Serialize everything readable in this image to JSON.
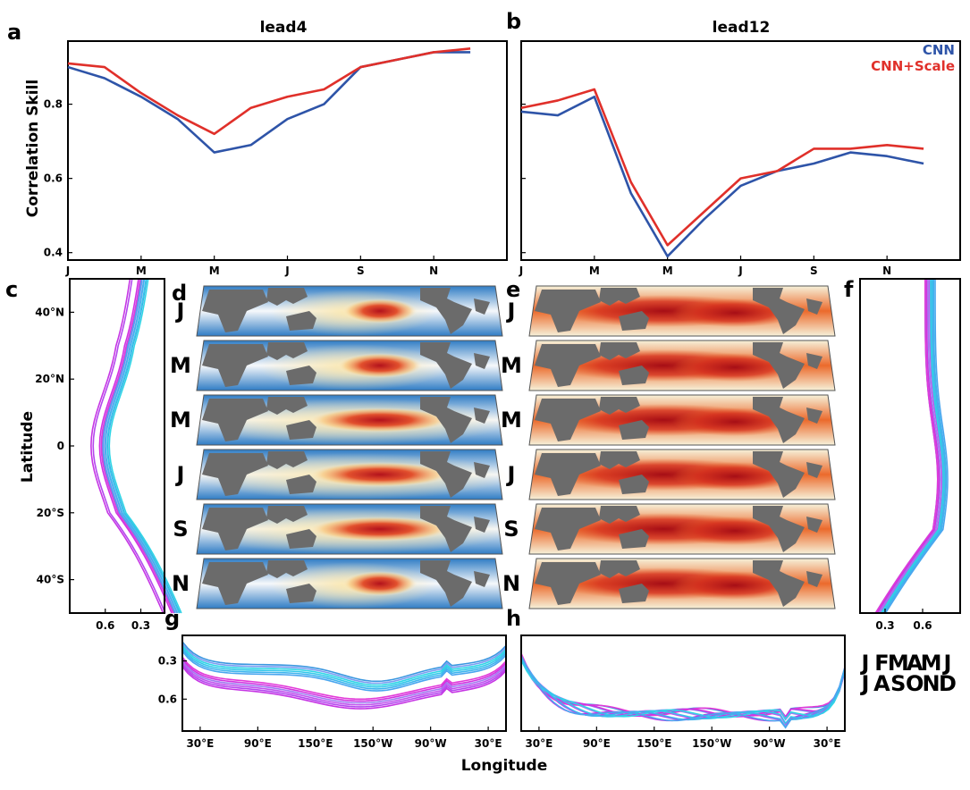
{
  "colors": {
    "cnn": "#2e54a8",
    "cnn_scale": "#e0302a",
    "month_J": "#3a97e0",
    "month_F": "#7b9cf2",
    "month_M": "#a07af0",
    "month_A": "#c152ef",
    "month_Jul": "#c636e4",
    "month_Aug": "#e23ad8",
    "month_S": "#2fd6e6",
    "month_O": "#33c8ea",
    "month_N": "#3fb4ee",
    "month_D": "#4aa6ef",
    "land": "#6b6b6b"
  },
  "panel_labels": {
    "a": "a",
    "b": "b",
    "c": "c",
    "d": "d",
    "e": "e",
    "f": "f",
    "g": "g",
    "h": "h"
  },
  "axis_text": {
    "correlation_skill": "Correlation Skill",
    "latitude": "Latitude",
    "longitude": "Longitude"
  },
  "map_month_labels": [
    "J",
    "M",
    "M",
    "J",
    "S",
    "N"
  ],
  "chart_data": [
    {
      "panel": "a",
      "type": "line",
      "title": "lead4",
      "ylabel": "Correlation Skill",
      "ylim": [
        0.38,
        0.97
      ],
      "yticks": [
        0.4,
        0.6,
        0.8
      ],
      "xtick_labels": [
        "J",
        "M",
        "M",
        "J",
        "S",
        "N"
      ],
      "x": [
        1,
        2,
        3,
        4,
        5,
        6,
        7,
        8,
        9,
        10,
        11,
        12
      ],
      "series": [
        {
          "name": "CNN",
          "color": "#2e54a8",
          "values": [
            0.9,
            0.87,
            0.82,
            0.76,
            0.67,
            0.69,
            0.76,
            0.8,
            0.9,
            0.92,
            0.94,
            0.94
          ]
        },
        {
          "name": "CNN+Scale",
          "color": "#e0302a",
          "values": [
            0.91,
            0.9,
            0.83,
            0.77,
            0.72,
            0.79,
            0.82,
            0.84,
            0.9,
            0.92,
            0.94,
            0.95
          ]
        }
      ]
    },
    {
      "panel": "b",
      "type": "line",
      "title": "lead12",
      "ylim": [
        0.38,
        0.97
      ],
      "xtick_labels": [
        "J",
        "M",
        "M",
        "J",
        "S",
        "N"
      ],
      "legend_position": "top-right",
      "x": [
        1,
        2,
        3,
        4,
        5,
        6,
        7,
        8,
        9,
        10,
        11,
        12
      ],
      "series": [
        {
          "name": "CNN",
          "color": "#2e54a8",
          "values": [
            0.78,
            0.77,
            0.82,
            0.56,
            0.39,
            0.49,
            0.58,
            0.62,
            0.64,
            0.67,
            0.66,
            0.64
          ]
        },
        {
          "name": "CNN+Scale",
          "color": "#e0302a",
          "values": [
            0.79,
            0.81,
            0.84,
            0.59,
            0.42,
            0.51,
            0.6,
            0.62,
            0.68,
            0.68,
            0.69,
            0.68
          ]
        }
      ]
    },
    {
      "panel": "c",
      "type": "line",
      "ylabel": "Latitude",
      "ytick_labels": [
        "40°N",
        "20°N",
        "0",
        "20°S",
        "40°S"
      ],
      "yticks": [
        40,
        20,
        0,
        -20,
        -40
      ],
      "ylim": [
        -50,
        50
      ],
      "xlim": [
        0.9,
        0.1
      ],
      "xticks": [
        0.6,
        0.3
      ],
      "xtick_labels": [
        "0.6",
        "0.3"
      ]
    },
    {
      "panel": "f",
      "type": "line",
      "ylim": [
        -50,
        50
      ],
      "xlim": [
        0.1,
        0.9
      ],
      "xticks": [
        0.3,
        0.6
      ],
      "xtick_labels": [
        "0.3",
        "0.6"
      ]
    },
    {
      "panel": "g",
      "type": "line",
      "ylim": [
        0.85,
        0.1
      ],
      "yticks": [
        0.3,
        0.6
      ],
      "ytick_labels": [
        "0.3",
        "0.6"
      ],
      "xtick_labels": [
        "30°E",
        "90°E",
        "150°E",
        "150°W",
        "90°W",
        "30°E"
      ]
    },
    {
      "panel": "h",
      "type": "line",
      "ylim": [
        0.85,
        0.1
      ],
      "xtick_labels": [
        "30°E",
        "90°E",
        "150°E",
        "150°W",
        "90°W",
        "30°E"
      ],
      "xlabel": "Longitude"
    }
  ],
  "month_legend": {
    "row1": [
      {
        "label": "J",
        "color": "#3a97e0"
      },
      {
        "label": "F",
        "color": "#7b9cf2"
      },
      {
        "label": "M",
        "color": "#a07af0"
      },
      {
        "label": "A",
        "color": "#c152ef"
      },
      {
        "label": "M",
        "color": "#b448ee"
      },
      {
        "label": "J",
        "color": "#c636e4"
      }
    ],
    "row2": [
      {
        "label": "J",
        "color": "#d232e0"
      },
      {
        "label": "A",
        "color": "#e23ad8"
      },
      {
        "label": "S",
        "color": "#2fd6e6"
      },
      {
        "label": "O",
        "color": "#33c8ea"
      },
      {
        "label": "N",
        "color": "#3fb4ee"
      },
      {
        "label": "D",
        "color": "#4aa6ef"
      }
    ]
  }
}
